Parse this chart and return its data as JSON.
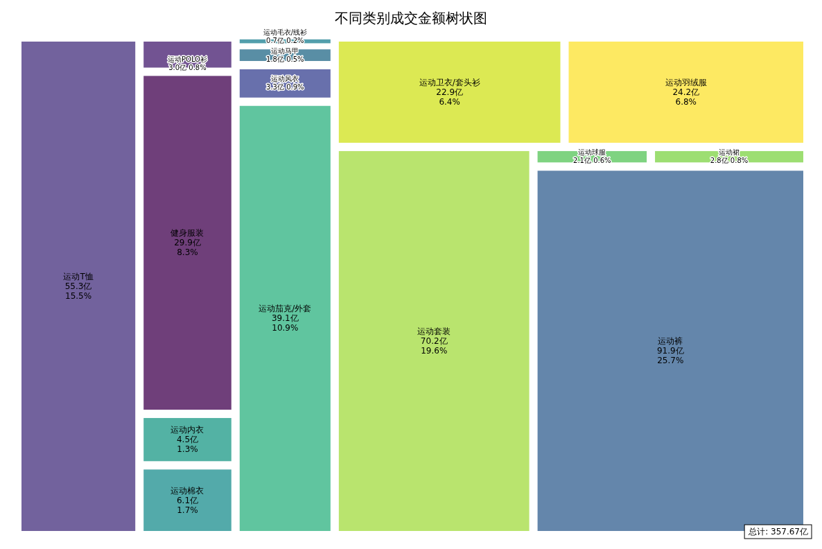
{
  "chart_data": {
    "type": "other",
    "title": "不同类别成交金额树状图",
    "categories": [
      "运动T恤",
      "运动POLO衫",
      "健身服装",
      "运动内衣",
      "运动棉衣",
      "运动毛衣/线衫",
      "运动马甲",
      "运动风衣",
      "运动茄克/外套",
      "运动卫衣/套头衫",
      "运动羽绒服",
      "运动套装",
      "运动球服",
      "运动裙",
      "运动裤"
    ],
    "values": [
      55.3,
      3.0,
      29.9,
      4.5,
      6.1,
      0.7,
      1.8,
      3.3,
      39.1,
      22.9,
      24.2,
      70.2,
      2.1,
      2.8,
      91.9
    ],
    "value_labels": [
      "55.3亿\n15.5%",
      "3.0亿\n0.8%",
      "29.9亿\n8.3%",
      "4.5亿\n1.3%",
      "6.1亿\n1.7%",
      "0.7亿\n0.2%",
      "1.8亿\n0.5%",
      "3.3亿\n0.9%",
      "39.1亿\n10.9%",
      "22.9亿\n6.4%",
      "24.2亿\n6.8%",
      "70.2亿\n19.6%",
      "2.1亿\n0.6%",
      "2.8亿\n0.8%",
      "91.9亿\n25.7%"
    ],
    "colors": [
      "#6a5a98",
      "#6a4a8c",
      "#673573",
      "#4aae9f",
      "#4aa5a5",
      "#4a9aa8",
      "#5088a0",
      "#6068a8",
      "#57c29a",
      "#dae84a",
      "#fde85a",
      "#b5e366",
      "#78d17a",
      "#98dc6a",
      "#5c7fa6"
    ],
    "annotations": [
      "总计: 357.67亿"
    ]
  }
}
